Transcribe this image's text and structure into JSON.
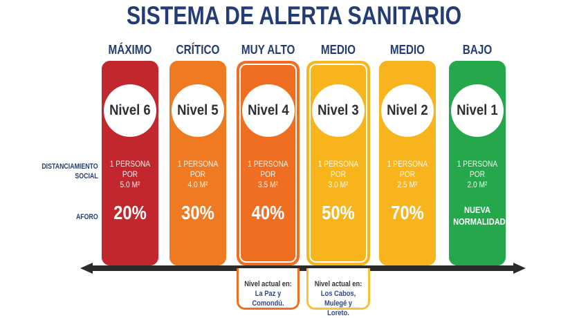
{
  "title": "SISTEMA DE ALERTA SANITARIO",
  "row_labels": {
    "distanciamiento": "DISTANCIAMIENTO\nSOCIAL",
    "aforo": "AFORO"
  },
  "levels": [
    {
      "header": "MÁXIMO",
      "nivel": "Nivel 6",
      "distancia_1": "1 PERSONA POR",
      "distancia_2": "5.0 M²",
      "aforo": "20%",
      "color": "#c1272d",
      "outlined": false
    },
    {
      "header": "CRÍTICO",
      "nivel": "Nivel 5",
      "distancia_1": "1 PERSONA POR",
      "distancia_2": "4.0 M²",
      "aforo": "30%",
      "color": "#f07a21",
      "outlined": false
    },
    {
      "header": "MUY ALTO",
      "nivel": "Nivel 4",
      "distancia_1": "1 PERSONA POR",
      "distancia_2": "3.5 M²",
      "aforo": "40%",
      "color": "#f06e22",
      "outlined": true
    },
    {
      "header": "MEDIO",
      "nivel": "Nivel 3",
      "distancia_1": "1 PERSONA POR",
      "distancia_2": "3.0 M²",
      "aforo": "50%",
      "color": "#f8b51b",
      "outlined": true
    },
    {
      "header": "MEDIO",
      "nivel": "Nivel 2",
      "distancia_1": "1 PERSONA POR",
      "distancia_2": "2.5 M²",
      "aforo": "70%",
      "color": "#f7b41c",
      "outlined": false
    },
    {
      "header": "BAJO",
      "nivel": "Nivel 1",
      "distancia_1": "1 PERSONA POR",
      "distancia_2": "2.0 M²",
      "aforo": "NUEVA\nNORMALIDAD",
      "color": "#24a84b",
      "outlined": false
    }
  ],
  "notes": [
    {
      "heading": "Nivel actual en:",
      "line1": "La Paz y",
      "line2": "Comondú.",
      "color": "#f06e22"
    },
    {
      "heading": "Nivel actual en:",
      "line1": "Los Cabos,",
      "line2": "Mulegé y Loreto.",
      "color": "#f8c23a"
    }
  ],
  "arrow_color": "#2b2b2b"
}
